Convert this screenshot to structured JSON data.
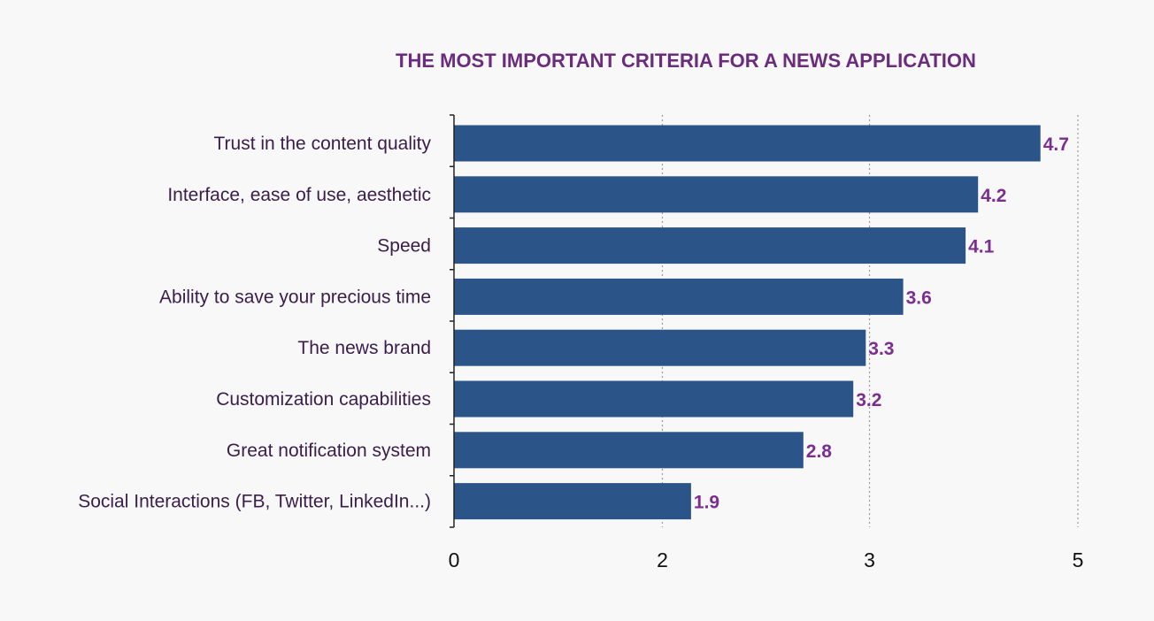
{
  "chart_data": {
    "type": "bar",
    "orientation": "horizontal",
    "title": "THE MOST IMPORTANT CRITERIA FOR A NEWS APPLICATION",
    "categories": [
      "Trust in the content quality",
      "Interface, ease of use, aesthetic",
      "Speed",
      "Ability to save your precious time",
      "The news brand",
      "Customization capabilities",
      "Great notification system",
      "Social Interactions (FB, Twitter, LinkedIn...)"
    ],
    "values": [
      4.7,
      4.2,
      4.1,
      3.6,
      3.3,
      3.2,
      2.8,
      1.9
    ],
    "value_labels": [
      "4.7",
      "4.2",
      "4.1",
      "3.6",
      "3.3",
      "3.2",
      "2.8",
      "1.9"
    ],
    "x_ticks": [
      0,
      1.67,
      3.33,
      5
    ],
    "x_tick_labels": [
      "0",
      "2",
      "3",
      "5"
    ],
    "xlim": [
      0,
      5
    ],
    "xlabel": "",
    "ylabel": "",
    "grid": "vertical dotted",
    "legend": "none",
    "colors": {
      "bar": "#2b5589",
      "value_label": "#7b2e90",
      "category_label": "#3a1d4a",
      "title": "#6b2c7e",
      "grid": "#9a9a9a",
      "axis": "#222222"
    }
  }
}
